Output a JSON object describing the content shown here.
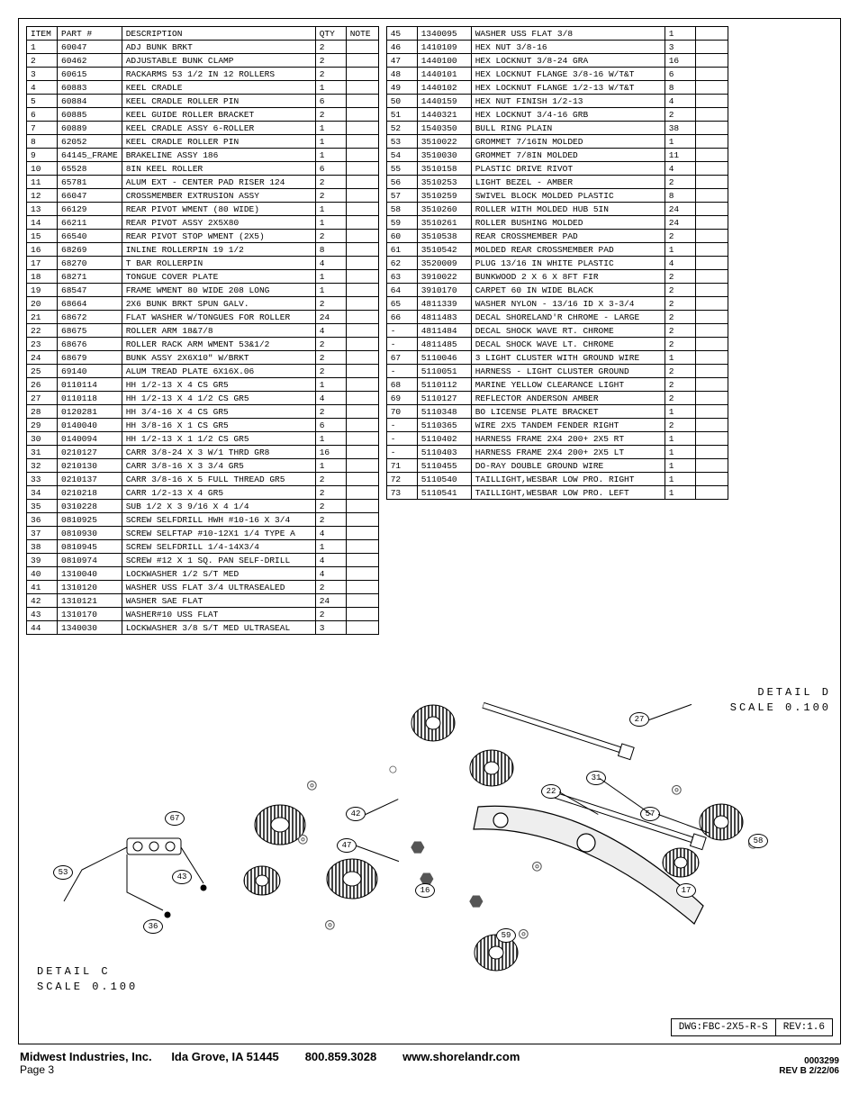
{
  "headers": {
    "item": "ITEM",
    "part": "PART #",
    "desc": "DESCRIPTION",
    "qty": "QTY",
    "note": "NOTE"
  },
  "table1": [
    {
      "i": "1",
      "p": "60047",
      "d": "ADJ BUNK BRKT",
      "q": "2"
    },
    {
      "i": "2",
      "p": "60462",
      "d": "ADJUSTABLE BUNK CLAMP",
      "q": "2"
    },
    {
      "i": "3",
      "p": "60615",
      "d": "RACKARMS  53 1/2 IN  12 ROLLERS",
      "q": "2"
    },
    {
      "i": "4",
      "p": "60883",
      "d": "KEEL CRADLE",
      "q": "1"
    },
    {
      "i": "5",
      "p": "60884",
      "d": "KEEL CRADLE ROLLER PIN",
      "q": "6"
    },
    {
      "i": "6",
      "p": "60885",
      "d": "KEEL GUIDE ROLLER BRACKET",
      "q": "2"
    },
    {
      "i": "7",
      "p": "60889",
      "d": "KEEL CRADLE ASSY 6-ROLLER",
      "q": "1"
    },
    {
      "i": "8",
      "p": "62052",
      "d": "KEEL CRADLE ROLLER PIN",
      "q": "1"
    },
    {
      "i": "9",
      "p": "64145_FRAME",
      "d": "BRAKELINE ASSY 186",
      "q": "1"
    },
    {
      "i": "10",
      "p": "65528",
      "d": "8IN KEEL ROLLER",
      "q": "6"
    },
    {
      "i": "11",
      "p": "65781",
      "d": "ALUM EXT - CENTER PAD RISER 124",
      "q": "2"
    },
    {
      "i": "12",
      "p": "66047",
      "d": "CROSSMEMBER EXTRUSION ASSY",
      "q": "2"
    },
    {
      "i": "13",
      "p": "66129",
      "d": "REAR PIVOT WMENT (80 WIDE)",
      "q": "1"
    },
    {
      "i": "14",
      "p": "66211",
      "d": "REAR PIVOT ASSY 2X5X80",
      "q": "1"
    },
    {
      "i": "15",
      "p": "66540",
      "d": "REAR PIVOT STOP WMENT (2X5)",
      "q": "2"
    },
    {
      "i": "16",
      "p": "68269",
      "d": "INLINE ROLLERPIN 19 1/2",
      "q": "8"
    },
    {
      "i": "17",
      "p": "68270",
      "d": "T BAR ROLLERPIN",
      "q": "4"
    },
    {
      "i": "18",
      "p": "68271",
      "d": "TONGUE COVER PLATE",
      "q": "1"
    },
    {
      "i": "19",
      "p": "68547",
      "d": "FRAME WMENT 80 WIDE 208 LONG",
      "q": "1"
    },
    {
      "i": "20",
      "p": "68664",
      "d": "2X6 BUNK BRKT SPUN GALV.",
      "q": "2"
    },
    {
      "i": "21",
      "p": "68672",
      "d": "FLAT WASHER W/TONGUES FOR ROLLER",
      "q": "24"
    },
    {
      "i": "22",
      "p": "68675",
      "d": "ROLLER ARM 18&7/8",
      "q": "4"
    },
    {
      "i": "23",
      "p": "68676",
      "d": "ROLLER RACK ARM WMENT  53&1/2",
      "q": "2"
    },
    {
      "i": "24",
      "p": "68679",
      "d": "BUNK ASSY 2X6X10\" W/BRKT",
      "q": "2"
    },
    {
      "i": "25",
      "p": "69140",
      "d": "ALUM TREAD PLATE 6X16X.06",
      "q": "2"
    },
    {
      "i": "26",
      "p": "0110114",
      "d": "HH 1/2-13 X 4 CS GR5",
      "q": "1"
    },
    {
      "i": "27",
      "p": "0110118",
      "d": "HH 1/2-13 X 4 1/2 CS GR5",
      "q": "4"
    },
    {
      "i": "28",
      "p": "0120281",
      "d": "HH 3/4-16 X 4 CS GR5",
      "q": "2"
    },
    {
      "i": "29",
      "p": "0140040",
      "d": "HH 3/8-16 X 1 CS GR5",
      "q": "6"
    },
    {
      "i": "30",
      "p": "0140094",
      "d": "HH 1/2-13 X 1 1/2 CS GR5",
      "q": "1"
    },
    {
      "i": "31",
      "p": "0210127",
      "d": "CARR 3/8-24 X 3 W/1 THRD GR8",
      "q": "16"
    },
    {
      "i": "32",
      "p": "0210130",
      "d": "CARR 3/8-16 X 3 3/4 GR5",
      "q": "1"
    },
    {
      "i": "33",
      "p": "0210137",
      "d": "CARR 3/8-16 X 5 FULL THREAD GR5",
      "q": "2"
    },
    {
      "i": "34",
      "p": "0210218",
      "d": "CARR 1/2-13 X 4 GR5",
      "q": "2"
    },
    {
      "i": "35",
      "p": "0310228",
      "d": "SUB 1/2 X 3 9/16 X 4 1/4",
      "q": "2"
    },
    {
      "i": "36",
      "p": "0810925",
      "d": "SCREW SELFDRILL HWH #10-16 X 3/4",
      "q": "2"
    },
    {
      "i": "37",
      "p": "0810930",
      "d": "SCREW SELFTAP #10-12X1 1/4 TYPE A",
      "q": "4"
    },
    {
      "i": "38",
      "p": "0810945",
      "d": "SCREW SELFDRILL  1/4-14X3/4",
      "q": "1"
    },
    {
      "i": "39",
      "p": "0810974",
      "d": "SCREW #12 X 1 SQ. PAN SELF-DRILL",
      "q": "4"
    },
    {
      "i": "40",
      "p": "1310040",
      "d": "LOCKWASHER 1/2 S/T MED",
      "q": "4"
    },
    {
      "i": "41",
      "p": "1310120",
      "d": "WASHER USS FLAT 3/4 ULTRASEALED",
      "q": "2"
    },
    {
      "i": "42",
      "p": "1310121",
      "d": "WASHER SAE FLAT",
      "q": "24"
    },
    {
      "i": "43",
      "p": "1310170",
      "d": "WASHER#10 USS FLAT",
      "q": "2"
    },
    {
      "i": "44",
      "p": "1340030",
      "d": "LOCKWASHER 3/8 S/T MED ULTRASEAL",
      "q": "3"
    }
  ],
  "table2": [
    {
      "i": "45",
      "p": "1340095",
      "d": "WASHER USS FLAT 3/8",
      "q": "1"
    },
    {
      "i": "46",
      "p": "1410109",
      "d": "HEX NUT 3/8-16",
      "q": "3"
    },
    {
      "i": "47",
      "p": "1440100",
      "d": "HEX LOCKNUT 3/8-24 GRA",
      "q": "16"
    },
    {
      "i": "48",
      "p": "1440101",
      "d": "HEX LOCKNUT FLANGE 3/8-16 W/T&T",
      "q": "6"
    },
    {
      "i": "49",
      "p": "1440102",
      "d": "HEX LOCKNUT FLANGE 1/2-13 W/T&T",
      "q": "8"
    },
    {
      "i": "50",
      "p": "1440159",
      "d": "HEX NUT FINISH 1/2-13",
      "q": "4"
    },
    {
      "i": "51",
      "p": "1440321",
      "d": "HEX LOCKNUT 3/4-16 GRB",
      "q": "2"
    },
    {
      "i": "52",
      "p": "1540350",
      "d": "BULL RING PLAIN",
      "q": "38"
    },
    {
      "i": "53",
      "p": "3510022",
      "d": "GROMMET  7/16IN MOLDED",
      "q": "1"
    },
    {
      "i": "54",
      "p": "3510030",
      "d": "GROMMET  7/8IN MOLDED",
      "q": "11"
    },
    {
      "i": "55",
      "p": "3510158",
      "d": "PLASTIC DRIVE RIVOT",
      "q": "4"
    },
    {
      "i": "56",
      "p": "3510253",
      "d": "LIGHT BEZEL - AMBER",
      "q": "2"
    },
    {
      "i": "57",
      "p": "3510259",
      "d": "SWIVEL BLOCK MOLDED PLASTIC",
      "q": "8"
    },
    {
      "i": "58",
      "p": "3510260",
      "d": "ROLLER WITH MOLDED HUB  5IN",
      "q": "24"
    },
    {
      "i": "59",
      "p": "3510261",
      "d": "ROLLER BUSHING MOLDED",
      "q": "24"
    },
    {
      "i": "60",
      "p": "3510538",
      "d": "REAR CROSSMEMBER PAD",
      "q": "2"
    },
    {
      "i": "61",
      "p": "3510542",
      "d": "MOLDED REAR CROSSMEMBER PAD",
      "q": "1"
    },
    {
      "i": "62",
      "p": "3520009",
      "d": "PLUG 13/16 IN WHITE PLASTIC",
      "q": "4"
    },
    {
      "i": "63",
      "p": "3910022",
      "d": "BUNKWOOD   2 X 6 X 8FT FIR",
      "q": "2"
    },
    {
      "i": "64",
      "p": "3910170",
      "d": "CARPET 60 IN WIDE BLACK",
      "q": "2"
    },
    {
      "i": "65",
      "p": "4811339",
      "d": "WASHER NYLON - 13/16 ID X 3-3/4",
      "q": "2"
    },
    {
      "i": "66",
      "p": "4811483",
      "d": "DECAL SHORELAND'R CHROME - LARGE",
      "q": "2"
    },
    {
      "i": "-",
      "p": "4811484",
      "d": "DECAL SHOCK WAVE RT. CHROME",
      "q": "2"
    },
    {
      "i": "-",
      "p": "4811485",
      "d": "DECAL SHOCK WAVE LT. CHROME",
      "q": "2"
    },
    {
      "i": "67",
      "p": "5110046",
      "d": "3 LIGHT CLUSTER WITH GROUND WIRE",
      "q": "1"
    },
    {
      "i": "-",
      "p": "5110051",
      "d": "HARNESS - LIGHT CLUSTER GROUND",
      "q": "2"
    },
    {
      "i": "68",
      "p": "5110112",
      "d": "MARINE YELLOW CLEARANCE LIGHT",
      "q": "2"
    },
    {
      "i": "69",
      "p": "5110127",
      "d": "REFLECTOR ANDERSON AMBER",
      "q": "2"
    },
    {
      "i": "70",
      "p": "5110348",
      "d": "BO LICENSE PLATE BRACKET",
      "q": "1"
    },
    {
      "i": "-",
      "p": "5110365",
      "d": "WIRE   2X5 TANDEM FENDER   RIGHT",
      "q": "2"
    },
    {
      "i": "-",
      "p": "5110402",
      "d": "HARNESS   FRAME 2X4 200+ 2X5 RT",
      "q": "1"
    },
    {
      "i": "-",
      "p": "5110403",
      "d": "HARNESS   FRAME 2X4 200+ 2X5 LT",
      "q": "1"
    },
    {
      "i": "71",
      "p": "5110455",
      "d": "DO-RAY DOUBLE GROUND WIRE",
      "q": "1"
    },
    {
      "i": "72",
      "p": "5110540",
      "d": "TAILLIGHT,WESBAR LOW PRO. RIGHT",
      "q": "1"
    },
    {
      "i": "73",
      "p": "5110541",
      "d": "TAILLIGHT,WESBAR LOW PRO. LEFT",
      "q": "1"
    }
  ],
  "details": {
    "c_label": "DETAIL  C",
    "c_scale": "SCALE  0.100",
    "d_label": "DETAIL  D",
    "d_scale": "SCALE  0.100"
  },
  "titleblock": {
    "dwg": "DWG:FBC-2X5-R-S",
    "rev": "REV:1.6"
  },
  "callouts": {
    "c_53": "53",
    "c_43": "43",
    "c_36": "36",
    "c_67": "67",
    "d_27": "27",
    "d_22": "22",
    "d_31": "31",
    "d_57": "57",
    "d_58": "58",
    "d_17": "17",
    "d_59": "59",
    "d_16": "16",
    "d_42": "42",
    "d_47": "47"
  },
  "footer": {
    "company": "Midwest Industries, Inc.",
    "city": "Ida Grove, IA  51445",
    "phone": "800.859.3028",
    "web": "www.shorelandr.com",
    "page": "Page 3",
    "docnum": "0003299",
    "revdate": "REV B  2/22/06"
  }
}
